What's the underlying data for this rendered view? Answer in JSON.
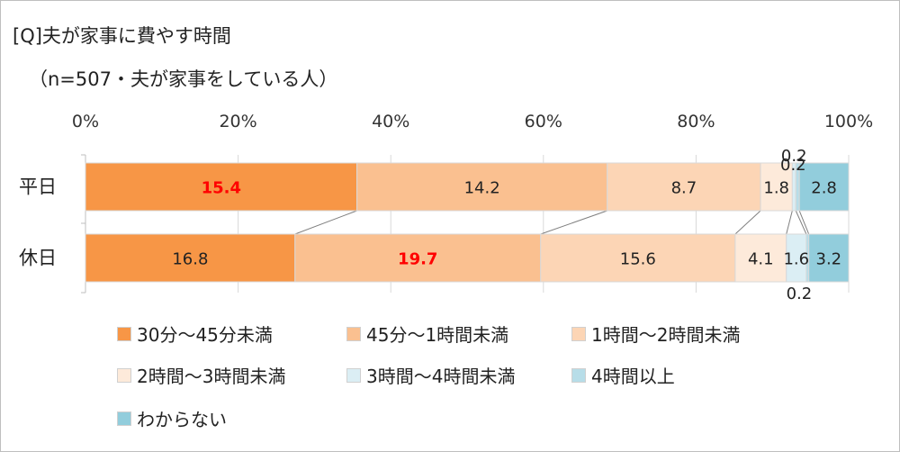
{
  "title": "[Q]夫が家事に費やす時間",
  "subtitle": "（n=507・夫が家事をしている人）",
  "chart_data": {
    "type": "bar",
    "orientation": "horizontal-stacked-100",
    "categories": [
      "平日",
      "休日"
    ],
    "xlim": [
      0,
      100
    ],
    "x_ticks": [
      "0%",
      "20%",
      "40%",
      "60%",
      "80%",
      "100%"
    ],
    "series": [
      {
        "name": "30分～45分未満",
        "values": [
          15.4,
          16.8
        ],
        "color": "#f79646",
        "highlight": [
          true,
          false
        ]
      },
      {
        "name": "45分～1時間未満",
        "values": [
          14.2,
          19.7
        ],
        "color": "#fac090",
        "highlight": [
          false,
          true
        ]
      },
      {
        "name": "1時間～2時間未満",
        "values": [
          8.7,
          15.6
        ],
        "color": "#fcd5b5",
        "highlight": [
          false,
          false
        ]
      },
      {
        "name": "2時間～3時間未満",
        "values": [
          1.8,
          4.1
        ],
        "color": "#fdeada",
        "highlight": [
          false,
          false
        ]
      },
      {
        "name": "3時間～4時間未満",
        "values": [
          0.2,
          1.6
        ],
        "color": "#dbeef4",
        "highlight": [
          false,
          false
        ]
      },
      {
        "name": "4時間以上",
        "values": [
          0.2,
          0.2
        ],
        "color": "#b7dde8",
        "highlight": [
          false,
          false
        ]
      },
      {
        "name": "わからない",
        "values": [
          2.8,
          3.2
        ],
        "color": "#92cddc",
        "highlight": [
          false,
          false
        ]
      }
    ],
    "highlight_color": "#ff0000",
    "legend_position": "bottom"
  }
}
